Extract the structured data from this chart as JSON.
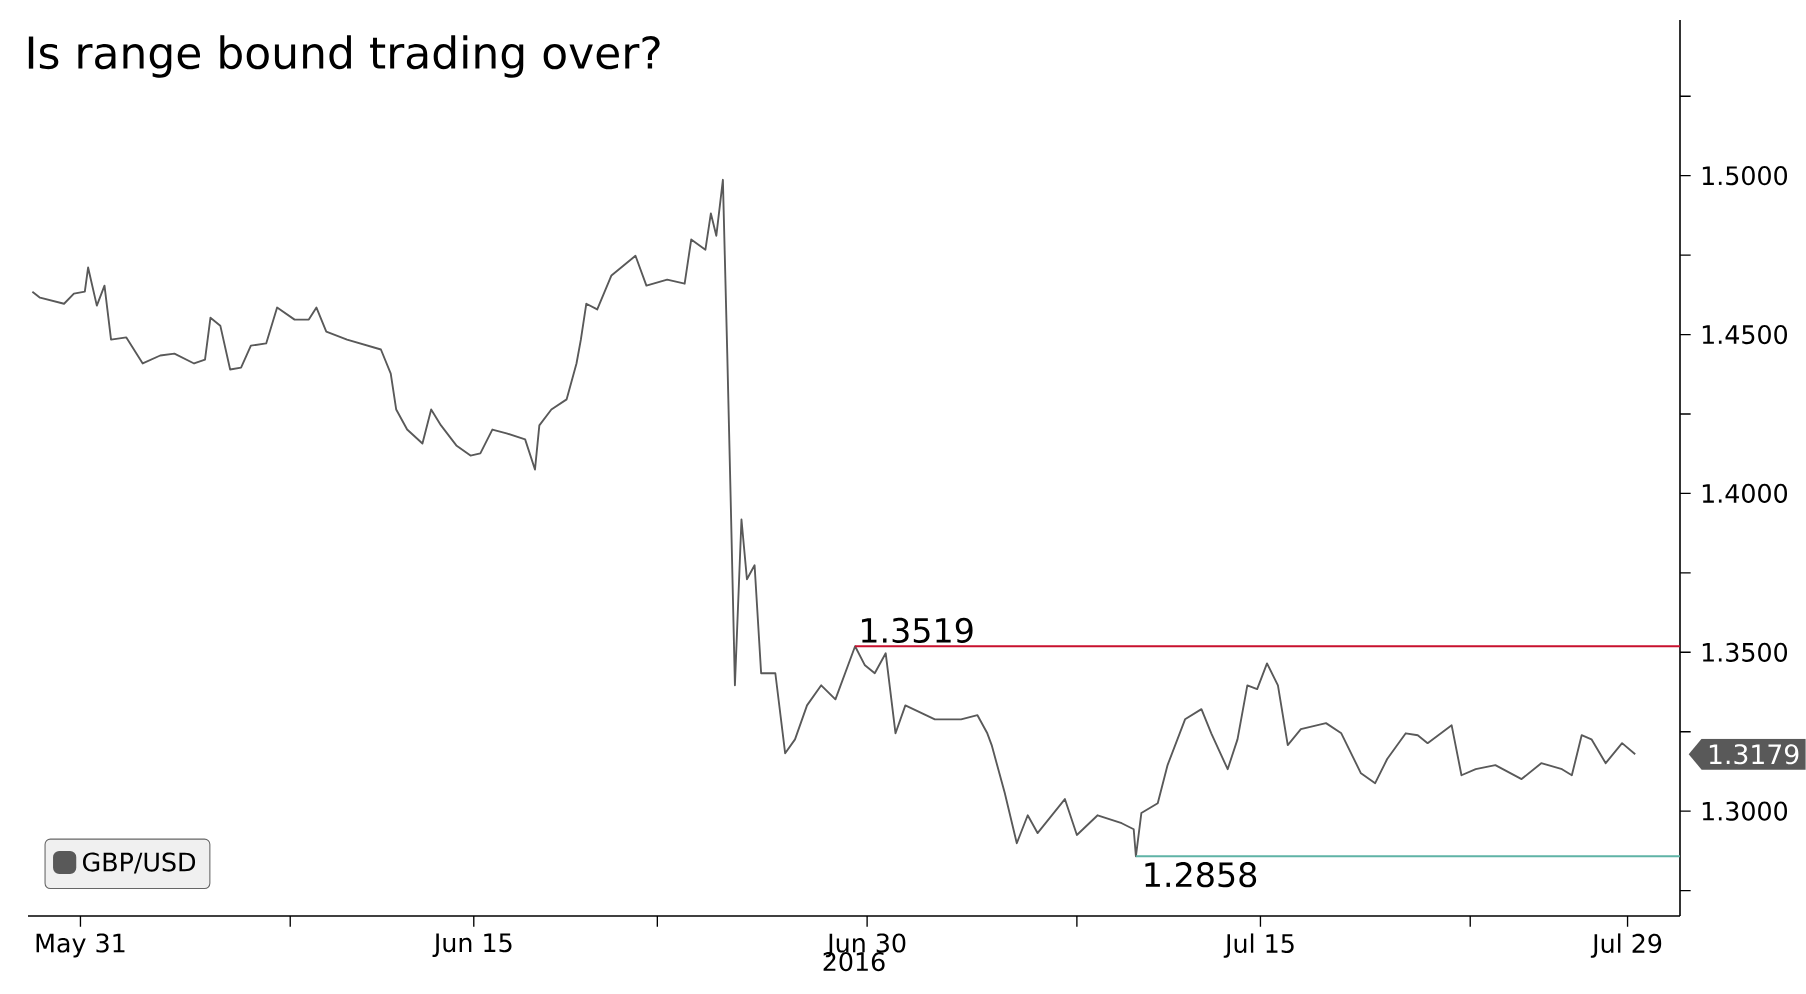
{
  "chart_data": {
    "type": "line",
    "title": "Is range bound trading over?",
    "xlabel": "2016",
    "xlim": [
      "2016-05-29",
      "2016-07-31"
    ],
    "xticks": [
      {
        "value": "2016-05-31",
        "label": "May 31"
      },
      {
        "value": "2016-06-08",
        "label": null
      },
      {
        "value": "2016-06-15",
        "label": "Jun 15"
      },
      {
        "value": "2016-06-22",
        "label": null
      },
      {
        "value": "2016-06-30",
        "label": "Jun 30"
      },
      {
        "value": "2016-07-08",
        "label": null
      },
      {
        "value": "2016-07-15",
        "label": "Jul 15"
      },
      {
        "value": "2016-07-23",
        "label": null
      },
      {
        "value": "2016-07-29",
        "label": "Jul 29"
      }
    ],
    "ylim": [
      1.267,
      1.549
    ],
    "yticks": [
      {
        "value": 1.275,
        "label": null
      },
      {
        "value": 1.3,
        "label": "1.3000"
      },
      {
        "value": 1.325,
        "label": null
      },
      {
        "value": 1.35,
        "label": "1.3500"
      },
      {
        "value": 1.375,
        "label": null
      },
      {
        "value": 1.4,
        "label": "1.4000"
      },
      {
        "value": 1.425,
        "label": null
      },
      {
        "value": 1.45,
        "label": "1.4500"
      },
      {
        "value": 1.475,
        "label": null
      },
      {
        "value": 1.5,
        "label": "1.5000"
      },
      {
        "value": 1.525,
        "label": null
      }
    ],
    "legend": "bottom left",
    "series": [
      {
        "name": "GBP/USD",
        "color": "#595959",
        "x": [
          "2016-05-29T04:00",
          "2016-05-29T11:00",
          "2016-05-30T09:00",
          "2016-05-30T18:00",
          "2016-05-31T04:00",
          "2016-05-31T07:00",
          "2016-05-31T15:00",
          "2016-05-31T22:00",
          "2016-06-01T04:00",
          "2016-06-01T18:00",
          "2016-06-02T09:00",
          "2016-06-03T01:00",
          "2016-06-03T14:00",
          "2016-06-04T08:00",
          "2016-06-04T18:00",
          "2016-06-04T23:00",
          "2016-06-05T08:00",
          "2016-06-05T17:00",
          "2016-06-06T03:00",
          "2016-06-06T12:00",
          "2016-06-07T02:00",
          "2016-06-07T12:00",
          "2016-06-08T04:00",
          "2016-06-08T17:00",
          "2016-06-09T00:00",
          "2016-06-09T09:00",
          "2016-06-10T04:00",
          "2016-06-11T11:00",
          "2016-06-11T20:00",
          "2016-06-12T01:00",
          "2016-06-12T11:00",
          "2016-06-13T01:00",
          "2016-06-13T09:00",
          "2016-06-13T18:00",
          "2016-06-14T08:00",
          "2016-06-14T21:00",
          "2016-06-15T06:00",
          "2016-06-15T17:00",
          "2016-06-16T06:00",
          "2016-06-16T23:00",
          "2016-06-17T08:00",
          "2016-06-17T12:00",
          "2016-06-17T23:00",
          "2016-06-18T13:00",
          "2016-06-18T22:00",
          "2016-06-19T02:00",
          "2016-06-19T07:00",
          "2016-06-19T17:00",
          "2016-06-20T06:00",
          "2016-06-21T04:00",
          "2016-06-21T14:00",
          "2016-06-22T09:00",
          "2016-06-23T01:00",
          "2016-06-23T07:00",
          "2016-06-23T20:00",
          "2016-06-24T01:00",
          "2016-06-24T06:00",
          "2016-06-24T12:00",
          "2016-06-24T16:00",
          "2016-06-24T19:00",
          "2016-06-24T23:00",
          "2016-06-25T05:00",
          "2016-06-25T10:00",
          "2016-06-25T17:00",
          "2016-06-25T23:00",
          "2016-06-26T12:00",
          "2016-06-26T21:00",
          "2016-06-27T06:00",
          "2016-06-27T17:00",
          "2016-06-28T06:00",
          "2016-06-28T19:00",
          "2016-06-29T13:00",
          "2016-06-29T22:00",
          "2016-06-30T07:00",
          "2016-06-30T17:00",
          "2016-07-01T02:00",
          "2016-07-01T11:00",
          "2016-07-02T14:00",
          "2016-07-03T14:00",
          "2016-07-04T05:00",
          "2016-07-04T14:00",
          "2016-07-04T18:00",
          "2016-07-05T06:00",
          "2016-07-05T17:00",
          "2016-07-06T03:00",
          "2016-07-06T12:00",
          "2016-07-07T13:00",
          "2016-07-08T00:00",
          "2016-07-08T19:00",
          "2016-07-09T17:00",
          "2016-07-10T04:00",
          "2016-07-10T06:00",
          "2016-07-10T11:00",
          "2016-07-11T02:00",
          "2016-07-11T11:00",
          "2016-07-12T03:00",
          "2016-07-12T18:00",
          "2016-07-13T03:00",
          "2016-07-13T18:00",
          "2016-07-14T03:00",
          "2016-07-14T12:00",
          "2016-07-14T21:00",
          "2016-07-15T06:00",
          "2016-07-15T16:00",
          "2016-07-16T01:00",
          "2016-07-16T13:00",
          "2016-07-17T12:00",
          "2016-07-18T02:00",
          "2016-07-18T20:00",
          "2016-07-19T09:00",
          "2016-07-19T20:00",
          "2016-07-20T13:00",
          "2016-07-21T00:00",
          "2016-07-21T09:00",
          "2016-07-22T07:00",
          "2016-07-22T16:00",
          "2016-07-23T05:00",
          "2016-07-23T23:00",
          "2016-07-24T23:00",
          "2016-07-25T17:00",
          "2016-07-26T12:00",
          "2016-07-26T21:00",
          "2016-07-27T06:00",
          "2016-07-27T15:00",
          "2016-07-28T04:00",
          "2016-07-28T19:00",
          "2016-07-29T07:00"
        ],
        "values": [
          1.4635,
          1.4616,
          1.4597,
          1.4629,
          1.4635,
          1.4711,
          1.4591,
          1.4654,
          1.4484,
          1.4491,
          1.4409,
          1.4434,
          1.444,
          1.4409,
          1.4421,
          1.4553,
          1.4528,
          1.439,
          1.4396,
          1.4465,
          1.4472,
          1.4585,
          1.4547,
          1.4547,
          1.4585,
          1.4509,
          1.4484,
          1.4453,
          1.4377,
          1.4264,
          1.4201,
          1.4157,
          1.4264,
          1.4214,
          1.4151,
          1.4119,
          1.4126,
          1.4201,
          1.4189,
          1.417,
          1.4075,
          1.4214,
          1.4264,
          1.4296,
          1.4409,
          1.4484,
          1.4597,
          1.4579,
          1.4686,
          1.4748,
          1.4654,
          1.4673,
          1.466,
          1.4799,
          1.4767,
          1.4881,
          1.4811,
          1.4987,
          1.444,
          1.4,
          1.3396,
          1.3918,
          1.373,
          1.3774,
          1.3434,
          1.3434,
          1.3182,
          1.3226,
          1.3333,
          1.3396,
          1.3352,
          1.3519,
          1.3459,
          1.3434,
          1.3497,
          1.3245,
          1.3333,
          1.3289,
          1.3289,
          1.3302,
          1.3245,
          1.3208,
          1.3057,
          1.2899,
          1.2987,
          1.2931,
          1.3038,
          1.2925,
          1.2987,
          1.2962,
          1.2943,
          1.2858,
          1.2994,
          1.3025,
          1.3145,
          1.3289,
          1.3321,
          1.3245,
          1.3132,
          1.3226,
          1.3396,
          1.3384,
          1.3465,
          1.3396,
          1.3208,
          1.3258,
          1.3277,
          1.3245,
          1.3119,
          1.3088,
          1.3164,
          1.3245,
          1.3239,
          1.3214,
          1.327,
          1.3113,
          1.3132,
          1.3145,
          1.3101,
          1.3151,
          1.3132,
          1.3113,
          1.3239,
          1.3226,
          1.3151,
          1.3214,
          1.3179
        ]
      },
      {
        "color": "#c8102e",
        "x": [
          "2016-06-29T13:00",
          "2016-07-31"
        ],
        "values": [
          1.3519,
          1.3519
        ]
      },
      {
        "color": "#5fb3a6",
        "x": [
          "2016-07-10T06:00",
          "2016-07-31"
        ],
        "values": [
          1.2858,
          1.2858
        ]
      }
    ],
    "annotations": [
      {
        "text": "1.3519",
        "x": "2016-06-29T13:00",
        "y": 1.3519
      },
      {
        "text": "1.2858",
        "x": "2016-07-10T06:00",
        "y": 1.2858
      },
      {
        "text": "1.3179",
        "x": "2016-07-29T07:00",
        "y": 1.3179
      }
    ]
  }
}
